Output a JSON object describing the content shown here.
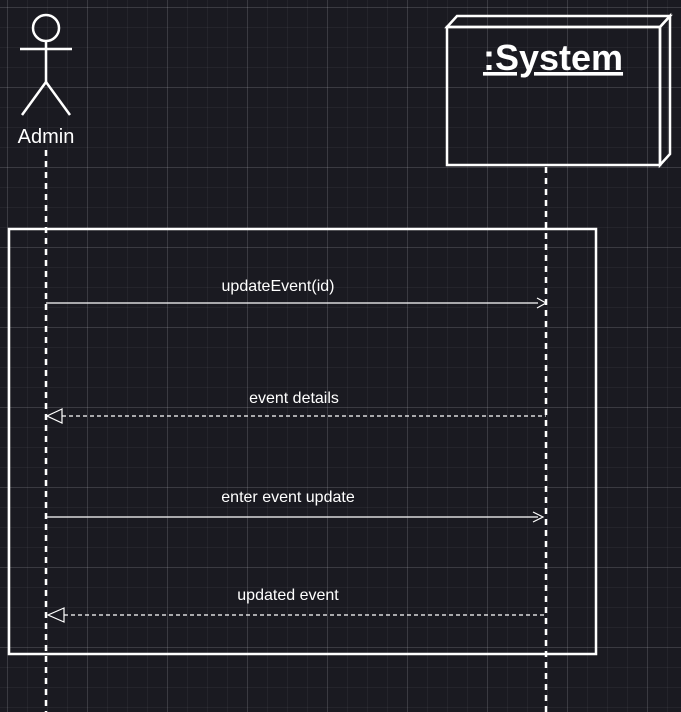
{
  "diagram": {
    "actor": {
      "label": "Admin"
    },
    "system": {
      "label": ":System"
    },
    "messages": [
      {
        "label": "updateEvent(id)",
        "direction": "to-system",
        "style": "solid"
      },
      {
        "label": "event details",
        "direction": "to-actor",
        "style": "dashed"
      },
      {
        "label": "enter event update",
        "direction": "to-system",
        "style": "solid"
      },
      {
        "label": "updated event",
        "direction": "to-actor",
        "style": "dashed"
      }
    ],
    "colors": {
      "background": "#1a1a21",
      "stroke": "#ffffff"
    }
  }
}
